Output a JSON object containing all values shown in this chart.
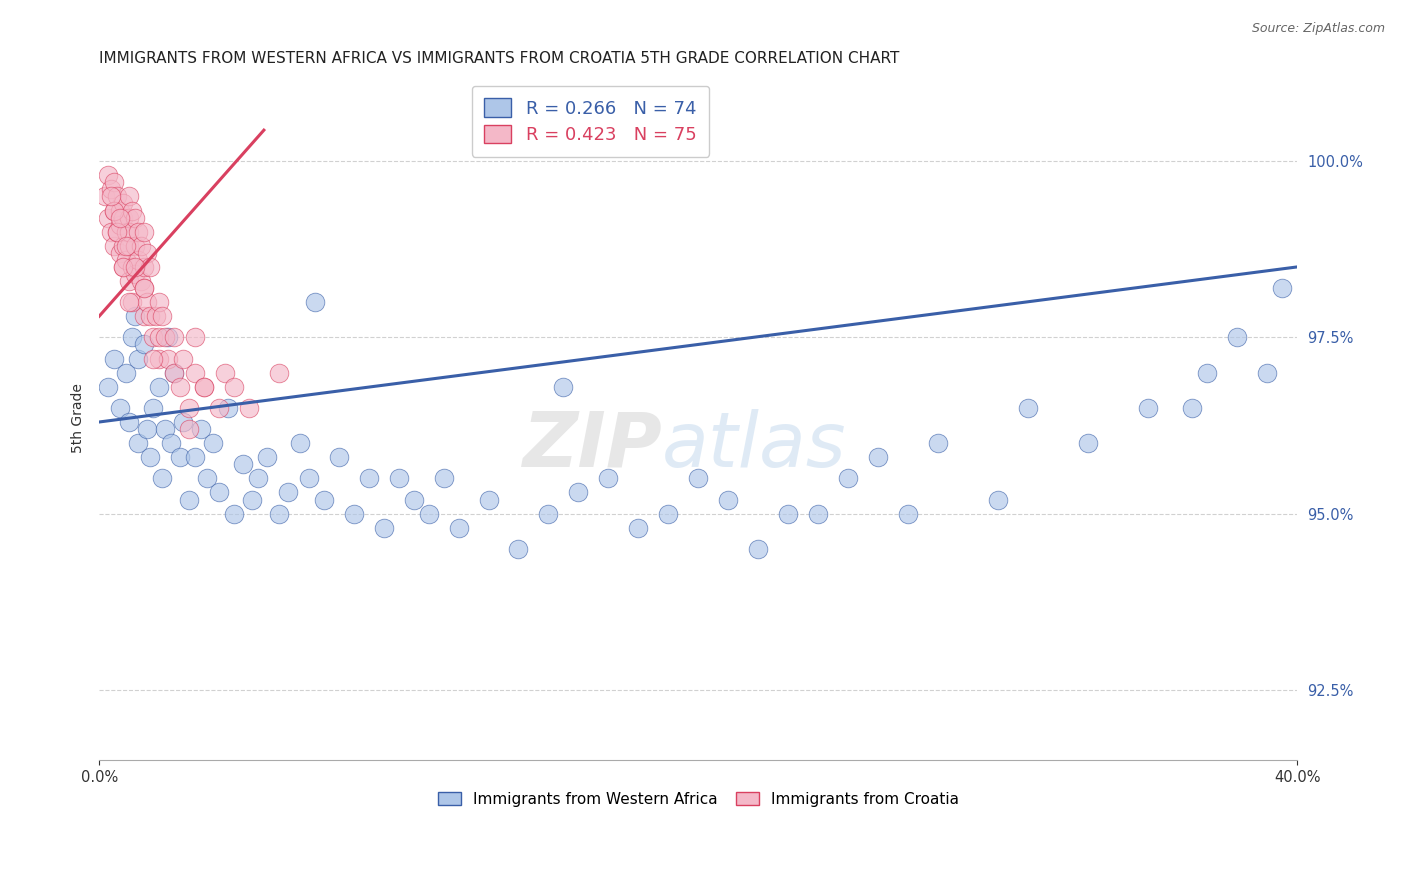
{
  "title": "IMMIGRANTS FROM WESTERN AFRICA VS IMMIGRANTS FROM CROATIA 5TH GRADE CORRELATION CHART",
  "source_text": "Source: ZipAtlas.com",
  "ylabel": "5th Grade",
  "xlim": [
    0.0,
    40.0
  ],
  "ylim": [
    91.5,
    101.2
  ],
  "yticks": [
    92.5,
    95.0,
    97.5,
    100.0
  ],
  "blue_label": "Immigrants from Western Africa",
  "pink_label": "Immigrants from Croatia",
  "blue_R": 0.266,
  "blue_N": 74,
  "pink_R": 0.423,
  "pink_N": 75,
  "blue_color": "#aec6e8",
  "pink_color": "#f4b8c8",
  "blue_line_color": "#3a5fa8",
  "pink_line_color": "#d94060",
  "blue_scatter_x": [
    0.3,
    0.5,
    0.7,
    0.9,
    1.0,
    1.1,
    1.2,
    1.3,
    1.3,
    1.5,
    1.6,
    1.7,
    1.8,
    2.0,
    2.1,
    2.2,
    2.4,
    2.5,
    2.7,
    2.8,
    3.0,
    3.2,
    3.4,
    3.6,
    3.8,
    4.0,
    4.3,
    4.5,
    4.8,
    5.1,
    5.3,
    5.6,
    6.0,
    6.3,
    6.7,
    7.0,
    7.5,
    8.0,
    8.5,
    9.0,
    9.5,
    10.0,
    10.5,
    11.0,
    11.5,
    12.0,
    13.0,
    14.0,
    15.0,
    16.0,
    17.0,
    18.0,
    19.0,
    20.0,
    21.0,
    22.0,
    23.0,
    25.0,
    26.0,
    28.0,
    30.0,
    31.0,
    33.0,
    35.0,
    37.0,
    38.0,
    39.0,
    39.5,
    36.5,
    27.0,
    24.0,
    15.5,
    7.2,
    2.3
  ],
  "blue_scatter_y": [
    96.8,
    97.2,
    96.5,
    97.0,
    96.3,
    97.5,
    97.8,
    97.2,
    96.0,
    97.4,
    96.2,
    95.8,
    96.5,
    96.8,
    95.5,
    96.2,
    96.0,
    97.0,
    95.8,
    96.3,
    95.2,
    95.8,
    96.2,
    95.5,
    96.0,
    95.3,
    96.5,
    95.0,
    95.7,
    95.2,
    95.5,
    95.8,
    95.0,
    95.3,
    96.0,
    95.5,
    95.2,
    95.8,
    95.0,
    95.5,
    94.8,
    95.5,
    95.2,
    95.0,
    95.5,
    94.8,
    95.2,
    94.5,
    95.0,
    95.3,
    95.5,
    94.8,
    95.0,
    95.5,
    95.2,
    94.5,
    95.0,
    95.5,
    95.8,
    96.0,
    95.2,
    96.5,
    96.0,
    96.5,
    97.0,
    97.5,
    97.0,
    98.2,
    96.5,
    95.0,
    95.0,
    96.8,
    98.0,
    97.5
  ],
  "pink_scatter_x": [
    0.2,
    0.3,
    0.3,
    0.4,
    0.4,
    0.5,
    0.5,
    0.5,
    0.6,
    0.6,
    0.7,
    0.7,
    0.7,
    0.8,
    0.8,
    0.8,
    0.8,
    0.9,
    0.9,
    1.0,
    1.0,
    1.0,
    1.0,
    1.0,
    1.1,
    1.1,
    1.1,
    1.2,
    1.2,
    1.2,
    1.3,
    1.3,
    1.4,
    1.4,
    1.5,
    1.5,
    1.5,
    1.5,
    1.6,
    1.6,
    1.7,
    1.7,
    1.8,
    1.9,
    2.0,
    2.0,
    2.0,
    2.1,
    2.2,
    2.3,
    2.5,
    2.7,
    2.8,
    3.0,
    3.2,
    3.5,
    4.0,
    4.2,
    4.5,
    5.0,
    6.0,
    3.2,
    3.0,
    3.5,
    2.5,
    1.5,
    1.0,
    0.8,
    0.6,
    0.5,
    0.4,
    1.8,
    1.2,
    0.9,
    0.7
  ],
  "pink_scatter_y": [
    99.5,
    99.8,
    99.2,
    99.6,
    99.0,
    99.7,
    99.3,
    98.8,
    99.5,
    99.0,
    99.3,
    98.7,
    99.1,
    99.4,
    98.8,
    99.2,
    98.5,
    99.0,
    98.6,
    99.2,
    98.8,
    99.5,
    98.3,
    99.0,
    99.3,
    98.5,
    98.0,
    98.8,
    99.2,
    98.4,
    98.6,
    99.0,
    98.3,
    98.8,
    98.5,
    99.0,
    98.2,
    97.8,
    98.7,
    98.0,
    98.5,
    97.8,
    97.5,
    97.8,
    98.0,
    97.5,
    97.2,
    97.8,
    97.5,
    97.2,
    97.0,
    96.8,
    97.2,
    96.5,
    97.0,
    96.8,
    96.5,
    97.0,
    96.8,
    96.5,
    97.0,
    97.5,
    96.2,
    96.8,
    97.5,
    98.2,
    98.0,
    98.5,
    99.0,
    99.3,
    99.5,
    97.2,
    98.5,
    98.8,
    99.2
  ]
}
